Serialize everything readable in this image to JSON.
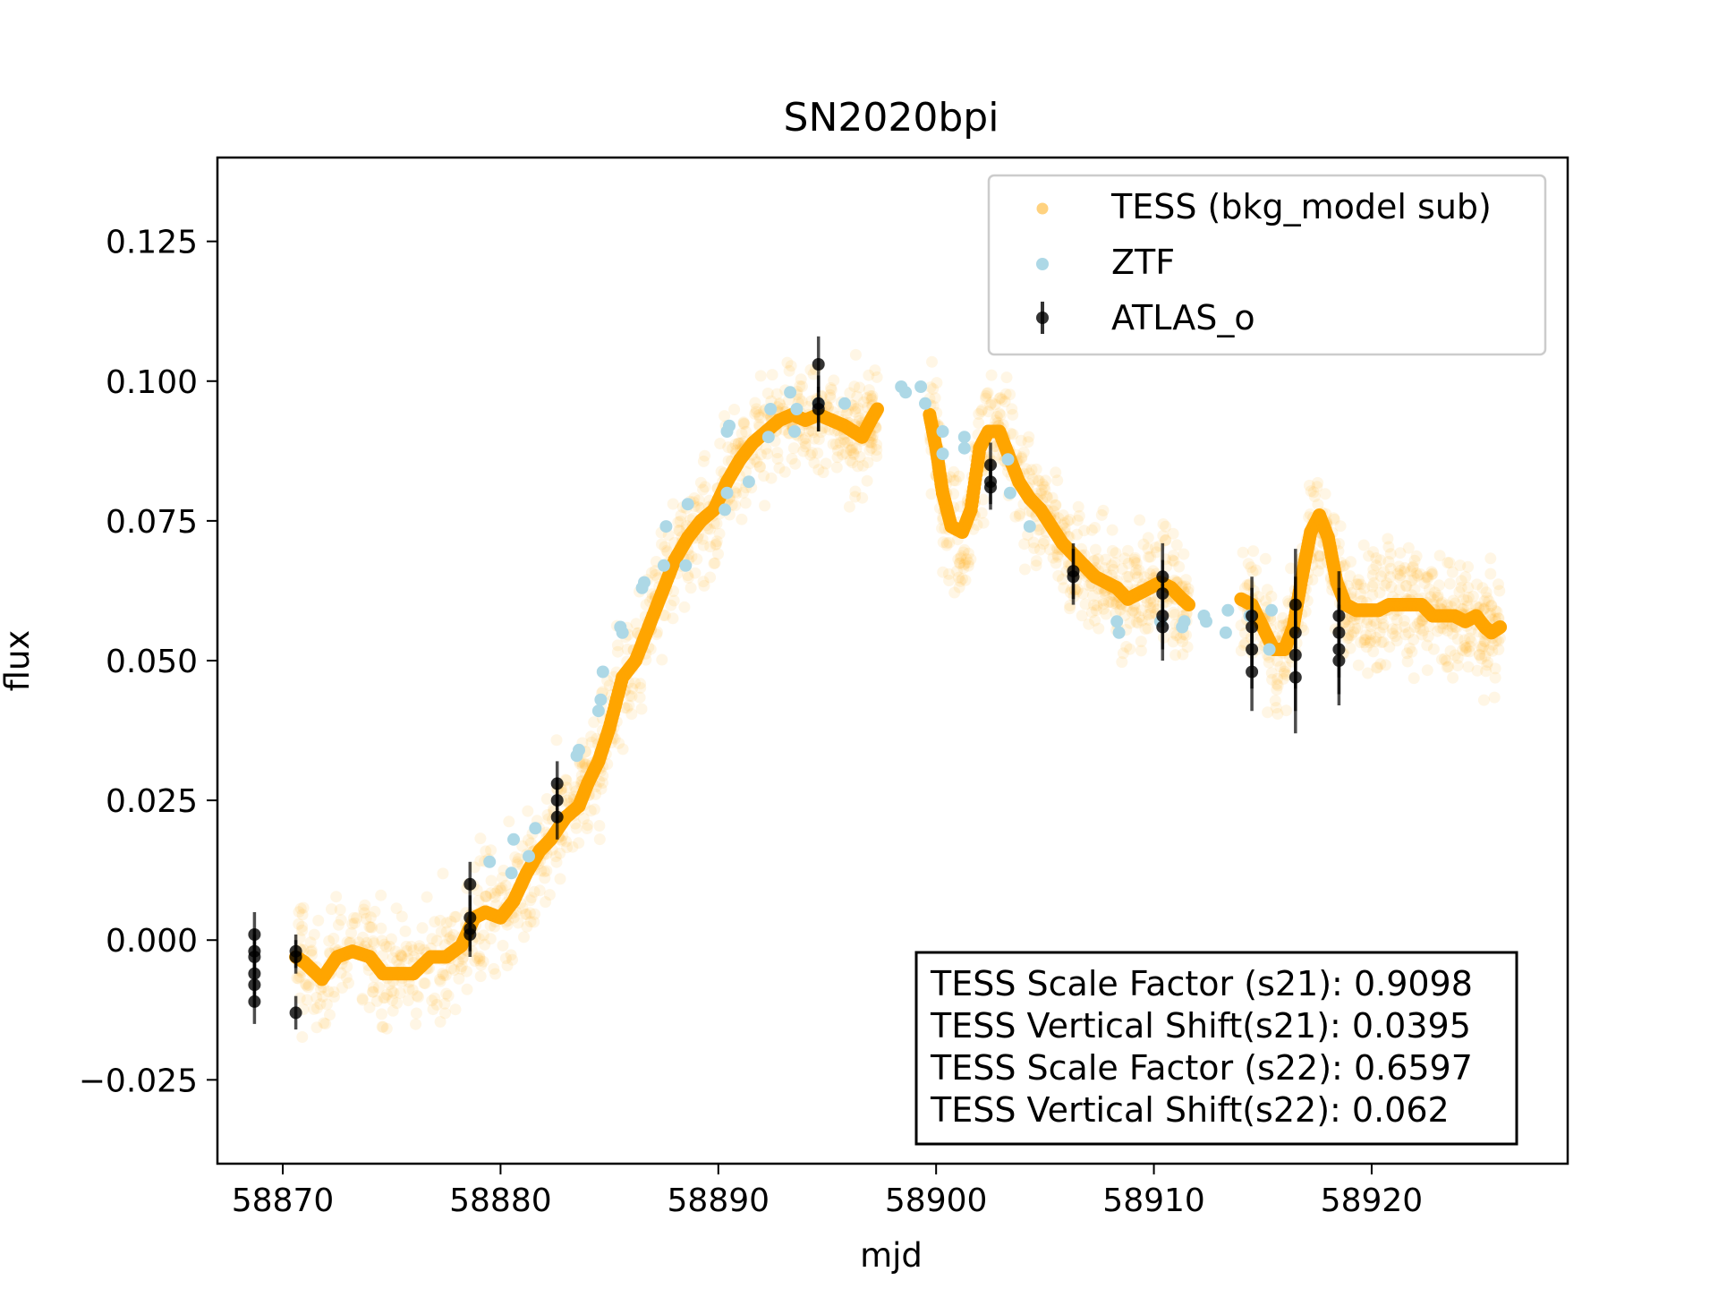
{
  "chart_data": {
    "type": "scatter",
    "title": "SN2020bpi",
    "xlabel": "mjd",
    "ylabel": "flux",
    "xlim": [
      58867,
      58929
    ],
    "ylim": [
      -0.04,
      0.14
    ],
    "xticks": [
      58870,
      58880,
      58890,
      58900,
      58910,
      58920
    ],
    "yticks": [
      -0.025,
      0.0,
      0.025,
      0.05,
      0.075,
      0.1,
      0.125
    ],
    "ytick_labels": [
      "−0.025",
      "0.000",
      "0.025",
      "0.050",
      "0.075",
      "0.100",
      "0.125"
    ],
    "grid": false,
    "legend_position": "top-right",
    "series": [
      {
        "name": "TESS (bkg_model sub)",
        "color": "#ffa500",
        "marker": "circle",
        "smooth_curve": [
          [
            58870.6,
            -0.003
          ],
          [
            58871.0,
            -0.004
          ],
          [
            58871.8,
            -0.007
          ],
          [
            58872.5,
            -0.003
          ],
          [
            58873.2,
            -0.002
          ],
          [
            58874.0,
            -0.003
          ],
          [
            58874.6,
            -0.006
          ],
          [
            58875.3,
            -0.006
          ],
          [
            58876.0,
            -0.006
          ],
          [
            58876.8,
            -0.003
          ],
          [
            58877.5,
            -0.003
          ],
          [
            58878.2,
            -0.001
          ],
          [
            58878.8,
            0.004
          ],
          [
            58879.3,
            0.005
          ],
          [
            58880.0,
            0.004
          ],
          [
            58880.6,
            0.007
          ],
          [
            58881.2,
            0.012
          ],
          [
            58881.8,
            0.016
          ],
          [
            58882.3,
            0.018
          ],
          [
            58883.0,
            0.022
          ],
          [
            58883.6,
            0.024
          ],
          [
            58884.0,
            0.028
          ],
          [
            58884.5,
            0.032
          ],
          [
            58885.0,
            0.038
          ],
          [
            58885.6,
            0.047
          ],
          [
            58886.2,
            0.05
          ],
          [
            58886.8,
            0.056
          ],
          [
            58887.4,
            0.062
          ],
          [
            58888.0,
            0.068
          ],
          [
            58888.6,
            0.072
          ],
          [
            58889.2,
            0.075
          ],
          [
            58889.8,
            0.077
          ],
          [
            58890.4,
            0.082
          ],
          [
            58891.0,
            0.086
          ],
          [
            58891.6,
            0.089
          ],
          [
            58892.2,
            0.091
          ],
          [
            58892.8,
            0.093
          ],
          [
            58893.4,
            0.094
          ],
          [
            58894.0,
            0.093
          ],
          [
            58894.6,
            0.094
          ],
          [
            58895.2,
            0.093
          ],
          [
            58895.8,
            0.092
          ],
          [
            58896.2,
            0.091
          ],
          [
            58896.6,
            0.09
          ],
          [
            58897.0,
            0.093
          ],
          [
            58897.3,
            0.095
          ],
          [
            58899.7,
            0.094
          ],
          [
            58900.0,
            0.088
          ],
          [
            58900.3,
            0.08
          ],
          [
            58900.7,
            0.074
          ],
          [
            58901.2,
            0.073
          ],
          [
            58901.6,
            0.077
          ],
          [
            58902.0,
            0.088
          ],
          [
            58902.4,
            0.091
          ],
          [
            58902.9,
            0.091
          ],
          [
            58903.3,
            0.087
          ],
          [
            58903.8,
            0.082
          ],
          [
            58904.3,
            0.079
          ],
          [
            58904.8,
            0.077
          ],
          [
            58905.3,
            0.074
          ],
          [
            58905.8,
            0.071
          ],
          [
            58906.3,
            0.069
          ],
          [
            58906.8,
            0.067
          ],
          [
            58907.3,
            0.065
          ],
          [
            58907.8,
            0.064
          ],
          [
            58908.3,
            0.063
          ],
          [
            58908.8,
            0.061
          ],
          [
            58909.3,
            0.062
          ],
          [
            58909.8,
            0.063
          ],
          [
            58910.3,
            0.064
          ],
          [
            58910.8,
            0.063
          ],
          [
            58911.3,
            0.061
          ],
          [
            58911.6,
            0.06
          ],
          [
            58914.0,
            0.061
          ],
          [
            58914.5,
            0.06
          ],
          [
            58915.0,
            0.056
          ],
          [
            58915.5,
            0.052
          ],
          [
            58916.0,
            0.052
          ],
          [
            58916.4,
            0.056
          ],
          [
            58916.8,
            0.065
          ],
          [
            58917.2,
            0.073
          ],
          [
            58917.6,
            0.076
          ],
          [
            58918.0,
            0.072
          ],
          [
            58918.4,
            0.064
          ],
          [
            58918.8,
            0.06
          ],
          [
            58919.3,
            0.059
          ],
          [
            58919.8,
            0.059
          ],
          [
            58920.3,
            0.059
          ],
          [
            58920.8,
            0.06
          ],
          [
            58921.3,
            0.06
          ],
          [
            58921.8,
            0.06
          ],
          [
            58922.3,
            0.06
          ],
          [
            58922.8,
            0.058
          ],
          [
            58923.3,
            0.058
          ],
          [
            58923.8,
            0.058
          ],
          [
            58924.3,
            0.057
          ],
          [
            58924.8,
            0.058
          ],
          [
            58925.2,
            0.056
          ],
          [
            58925.5,
            0.055
          ],
          [
            58925.9,
            0.056
          ]
        ]
      },
      {
        "name": "ZTF",
        "color": "#add8e6",
        "marker": "circle",
        "points": [
          [
            58879.5,
            0.014
          ],
          [
            58880.5,
            0.012
          ],
          [
            58880.6,
            0.018
          ],
          [
            58881.3,
            0.015
          ],
          [
            58881.6,
            0.02
          ],
          [
            58883.5,
            0.033
          ],
          [
            58883.6,
            0.034
          ],
          [
            58884.5,
            0.041
          ],
          [
            58884.6,
            0.043
          ],
          [
            58884.7,
            0.048
          ],
          [
            58885.5,
            0.056
          ],
          [
            58885.6,
            0.055
          ],
          [
            58886.5,
            0.063
          ],
          [
            58886.6,
            0.064
          ],
          [
            58887.5,
            0.067
          ],
          [
            58887.6,
            0.074
          ],
          [
            58888.5,
            0.067
          ],
          [
            58888.6,
            0.078
          ],
          [
            58890.3,
            0.077
          ],
          [
            58890.4,
            0.08
          ],
          [
            58890.4,
            0.091
          ],
          [
            58890.5,
            0.092
          ],
          [
            58891.4,
            0.082
          ],
          [
            58892.3,
            0.09
          ],
          [
            58892.4,
            0.095
          ],
          [
            58893.3,
            0.098
          ],
          [
            58893.5,
            0.091
          ],
          [
            58893.6,
            0.095
          ],
          [
            58894.6,
            0.096
          ],
          [
            58895.8,
            0.096
          ],
          [
            58898.4,
            0.099
          ],
          [
            58898.6,
            0.098
          ],
          [
            58899.3,
            0.099
          ],
          [
            58899.5,
            0.096
          ],
          [
            58900.3,
            0.091
          ],
          [
            58900.3,
            0.087
          ],
          [
            58901.3,
            0.09
          ],
          [
            58901.3,
            0.088
          ],
          [
            58903.3,
            0.086
          ],
          [
            58903.4,
            0.08
          ],
          [
            58904.3,
            0.074
          ],
          [
            58908.3,
            0.057
          ],
          [
            58908.4,
            0.055
          ],
          [
            58910.3,
            0.057
          ],
          [
            58911.3,
            0.056
          ],
          [
            58911.4,
            0.057
          ],
          [
            58912.3,
            0.058
          ],
          [
            58912.4,
            0.057
          ],
          [
            58913.3,
            0.055
          ],
          [
            58913.4,
            0.059
          ],
          [
            58914.4,
            0.058
          ],
          [
            58915.3,
            0.052
          ],
          [
            58915.4,
            0.059
          ]
        ]
      },
      {
        "name": "ATLAS_o",
        "color": "#000000",
        "marker": "circle",
        "error_bars": true,
        "points": [
          [
            58868.7,
            0.001,
            0.004
          ],
          [
            58868.7,
            -0.002,
            0.004
          ],
          [
            58868.7,
            -0.003,
            0.004
          ],
          [
            58868.7,
            -0.006,
            0.004
          ],
          [
            58868.7,
            -0.008,
            0.004
          ],
          [
            58868.7,
            -0.011,
            0.004
          ],
          [
            58870.6,
            -0.003,
            0.003
          ],
          [
            58870.6,
            -0.002,
            0.003
          ],
          [
            58870.6,
            -0.013,
            0.003
          ],
          [
            58878.6,
            0.01,
            0.004
          ],
          [
            58878.6,
            0.004,
            0.004
          ],
          [
            58878.6,
            0.002,
            0.004
          ],
          [
            58878.6,
            0.001,
            0.004
          ],
          [
            58882.6,
            0.028,
            0.004
          ],
          [
            58882.6,
            0.025,
            0.004
          ],
          [
            58882.6,
            0.022,
            0.004
          ],
          [
            58894.6,
            0.103,
            0.005
          ],
          [
            58894.6,
            0.096,
            0.005
          ],
          [
            58894.6,
            0.095,
            0.004
          ],
          [
            58902.5,
            0.085,
            0.004
          ],
          [
            58902.5,
            0.082,
            0.004
          ],
          [
            58902.5,
            0.081,
            0.004
          ],
          [
            58906.3,
            0.066,
            0.005
          ],
          [
            58906.3,
            0.065,
            0.005
          ],
          [
            58910.4,
            0.065,
            0.006
          ],
          [
            58910.4,
            0.062,
            0.006
          ],
          [
            58910.4,
            0.058,
            0.006
          ],
          [
            58910.4,
            0.056,
            0.006
          ],
          [
            58914.5,
            0.058,
            0.007
          ],
          [
            58914.5,
            0.056,
            0.007
          ],
          [
            58914.5,
            0.052,
            0.007
          ],
          [
            58914.5,
            0.048,
            0.007
          ],
          [
            58916.5,
            0.06,
            0.01
          ],
          [
            58916.5,
            0.055,
            0.01
          ],
          [
            58916.5,
            0.051,
            0.01
          ],
          [
            58916.5,
            0.047,
            0.01
          ],
          [
            58918.5,
            0.058,
            0.008
          ],
          [
            58918.5,
            0.055,
            0.008
          ],
          [
            58918.5,
            0.052,
            0.008
          ],
          [
            58918.5,
            0.05,
            0.008
          ]
        ]
      }
    ],
    "annotation_lines": [
      "TESS Scale Factor (s21): 0.9098",
      "TESS Vertical Shift(s21): 0.0395",
      "TESS Scale Factor (s22): 0.6597",
      "TESS Vertical Shift(s22): 0.062"
    ]
  }
}
